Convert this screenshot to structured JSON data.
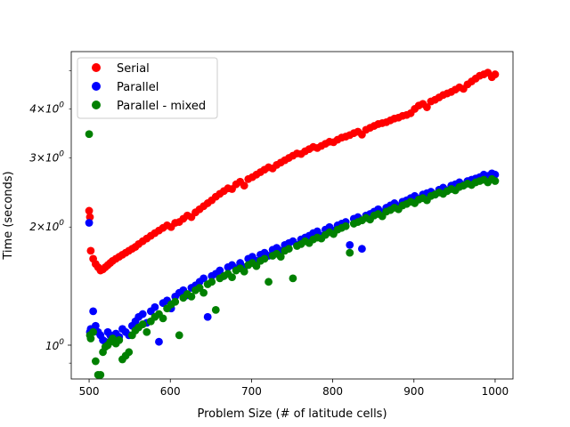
{
  "chart_data": {
    "type": "scatter",
    "title": "",
    "xlabel": "Problem Size (# of latitude cells)",
    "ylabel": "Time (seconds)",
    "xlim": [
      478,
      1022
    ],
    "ylim": [
      0.82,
      5.6
    ],
    "yscale": "log",
    "xticks": [
      500,
      600,
      700,
      800,
      900,
      1000
    ],
    "xtick_labels": [
      "500",
      "600",
      "700",
      "800",
      "900",
      "1000"
    ],
    "yticks_major": [
      1
    ],
    "ytick_major_labels": [
      "10^0"
    ],
    "yticks_minor": [
      2,
      3,
      4
    ],
    "ytick_minor_labels": [
      "2×10^0",
      "3×10^0",
      "4×10^0"
    ],
    "yticks_minor_unlabeled": [
      0.9,
      5
    ],
    "legend_location": "upper-left",
    "series": [
      {
        "name": "Serial",
        "color": "#ff0000",
        "x": [
          500,
          501,
          502,
          505,
          508,
          511,
          514,
          517,
          520,
          523,
          526,
          529,
          533,
          537,
          541,
          545,
          549,
          553,
          557,
          561,
          566,
          571,
          576,
          581,
          586,
          591,
          596,
          601,
          606,
          611,
          616,
          621,
          626,
          631,
          636,
          641,
          646,
          651,
          656,
          661,
          666,
          671,
          676,
          681,
          686,
          691,
          696,
          701,
          706,
          711,
          716,
          721,
          726,
          731,
          736,
          741,
          746,
          751,
          756,
          761,
          766,
          771,
          776,
          781,
          786,
          791,
          796,
          801,
          806,
          811,
          816,
          821,
          826,
          831,
          836,
          841,
          846,
          851,
          856,
          861,
          866,
          871,
          876,
          881,
          886,
          891,
          896,
          901,
          906,
          911,
          916,
          921,
          926,
          931,
          936,
          941,
          946,
          951,
          956,
          961,
          966,
          971,
          976,
          981,
          986,
          991,
          996,
          1000
        ],
        "y": [
          2.2,
          2.12,
          1.74,
          1.66,
          1.61,
          1.58,
          1.55,
          1.56,
          1.58,
          1.6,
          1.62,
          1.64,
          1.66,
          1.68,
          1.7,
          1.72,
          1.74,
          1.76,
          1.78,
          1.81,
          1.84,
          1.87,
          1.9,
          1.93,
          1.96,
          1.99,
          2.02,
          2.0,
          2.05,
          2.06,
          2.1,
          2.14,
          2.12,
          2.18,
          2.22,
          2.26,
          2.3,
          2.34,
          2.39,
          2.43,
          2.47,
          2.51,
          2.5,
          2.57,
          2.61,
          2.55,
          2.65,
          2.68,
          2.72,
          2.76,
          2.8,
          2.84,
          2.82,
          2.88,
          2.92,
          2.96,
          3.0,
          3.04,
          3.08,
          3.07,
          3.12,
          3.16,
          3.2,
          3.18,
          3.22,
          3.26,
          3.3,
          3.29,
          3.34,
          3.38,
          3.4,
          3.43,
          3.47,
          3.5,
          3.44,
          3.54,
          3.58,
          3.62,
          3.66,
          3.68,
          3.7,
          3.74,
          3.78,
          3.8,
          3.84,
          3.86,
          3.9,
          4.0,
          4.08,
          4.12,
          4.04,
          4.18,
          4.22,
          4.28,
          4.34,
          4.38,
          4.42,
          4.48,
          4.54,
          4.5,
          4.62,
          4.7,
          4.78,
          4.86,
          4.9,
          4.95,
          4.82,
          4.9
        ]
      },
      {
        "name": "Parallel",
        "color": "#0000ff",
        "x": [
          500,
          501,
          502,
          505,
          508,
          511,
          514,
          517,
          520,
          523,
          526,
          529,
          533,
          537,
          541,
          545,
          549,
          553,
          557,
          561,
          566,
          571,
          576,
          581,
          586,
          591,
          596,
          601,
          606,
          611,
          616,
          621,
          626,
          631,
          636,
          641,
          646,
          651,
          656,
          661,
          666,
          671,
          676,
          681,
          686,
          691,
          696,
          701,
          706,
          711,
          716,
          721,
          726,
          731,
          736,
          741,
          746,
          751,
          756,
          761,
          766,
          771,
          776,
          781,
          786,
          791,
          796,
          801,
          806,
          811,
          816,
          821,
          826,
          831,
          836,
          841,
          846,
          851,
          856,
          861,
          866,
          871,
          876,
          881,
          886,
          891,
          896,
          901,
          906,
          911,
          916,
          921,
          926,
          931,
          936,
          941,
          946,
          951,
          956,
          961,
          966,
          971,
          976,
          981,
          986,
          991,
          996,
          1000
        ],
        "y": [
          2.05,
          1.08,
          1.1,
          1.22,
          1.12,
          1.08,
          1.06,
          1.03,
          1.02,
          1.08,
          1.06,
          1.04,
          1.07,
          1.05,
          1.1,
          1.08,
          1.06,
          1.12,
          1.15,
          1.18,
          1.2,
          1.14,
          1.22,
          1.25,
          1.02,
          1.28,
          1.3,
          1.24,
          1.33,
          1.36,
          1.38,
          1.34,
          1.4,
          1.42,
          1.45,
          1.48,
          1.18,
          1.5,
          1.52,
          1.55,
          1.5,
          1.58,
          1.6,
          1.57,
          1.62,
          1.58,
          1.66,
          1.68,
          1.64,
          1.7,
          1.72,
          1.69,
          1.75,
          1.77,
          1.74,
          1.8,
          1.82,
          1.84,
          1.8,
          1.86,
          1.88,
          1.9,
          1.93,
          1.95,
          1.9,
          1.97,
          2.0,
          1.96,
          2.02,
          2.04,
          2.06,
          1.8,
          2.1,
          2.12,
          1.76,
          2.14,
          2.16,
          2.19,
          2.22,
          2.18,
          2.24,
          2.27,
          2.3,
          2.26,
          2.32,
          2.34,
          2.37,
          2.4,
          2.36,
          2.42,
          2.44,
          2.46,
          2.42,
          2.49,
          2.52,
          2.48,
          2.55,
          2.57,
          2.6,
          2.56,
          2.62,
          2.64,
          2.66,
          2.68,
          2.72,
          2.7,
          2.74,
          2.72
        ]
      },
      {
        "name": "Parallel - mixed",
        "color": "#008000",
        "x": [
          500,
          501,
          502,
          505,
          508,
          511,
          514,
          517,
          520,
          523,
          526,
          529,
          533,
          537,
          541,
          545,
          549,
          553,
          557,
          561,
          566,
          571,
          576,
          581,
          586,
          591,
          596,
          601,
          606,
          611,
          616,
          621,
          626,
          631,
          636,
          641,
          646,
          651,
          656,
          661,
          666,
          671,
          676,
          681,
          686,
          691,
          696,
          701,
          706,
          711,
          716,
          721,
          726,
          731,
          736,
          741,
          746,
          751,
          756,
          761,
          766,
          771,
          776,
          781,
          786,
          791,
          796,
          801,
          806,
          811,
          816,
          821,
          826,
          831,
          836,
          841,
          846,
          851,
          856,
          861,
          866,
          871,
          876,
          881,
          886,
          891,
          896,
          901,
          906,
          911,
          916,
          921,
          926,
          931,
          936,
          941,
          946,
          951,
          956,
          961,
          966,
          971,
          976,
          981,
          986,
          991,
          996,
          1000
        ],
        "y": [
          3.45,
          1.06,
          1.04,
          1.08,
          0.91,
          0.84,
          0.84,
          0.96,
          0.99,
          1.0,
          1.02,
          1.04,
          1.01,
          1.03,
          0.92,
          0.94,
          0.96,
          1.06,
          1.09,
          1.11,
          1.13,
          1.08,
          1.15,
          1.18,
          1.2,
          1.17,
          1.24,
          1.27,
          1.29,
          1.06,
          1.32,
          1.35,
          1.33,
          1.38,
          1.4,
          1.36,
          1.43,
          1.45,
          1.23,
          1.48,
          1.5,
          1.52,
          1.49,
          1.55,
          1.57,
          1.54,
          1.6,
          1.62,
          1.59,
          1.64,
          1.66,
          1.45,
          1.69,
          1.71,
          1.68,
          1.74,
          1.76,
          1.48,
          1.79,
          1.81,
          1.84,
          1.82,
          1.86,
          1.88,
          1.87,
          1.91,
          1.94,
          1.92,
          1.97,
          1.99,
          2.01,
          1.72,
          2.04,
          2.06,
          2.08,
          2.11,
          2.09,
          2.14,
          2.16,
          2.13,
          2.19,
          2.21,
          2.24,
          2.22,
          2.27,
          2.29,
          2.32,
          2.3,
          2.35,
          2.37,
          2.34,
          2.4,
          2.42,
          2.45,
          2.43,
          2.47,
          2.5,
          2.48,
          2.53,
          2.55,
          2.58,
          2.56,
          2.6,
          2.62,
          2.64,
          2.6,
          2.65,
          2.62
        ]
      }
    ]
  }
}
